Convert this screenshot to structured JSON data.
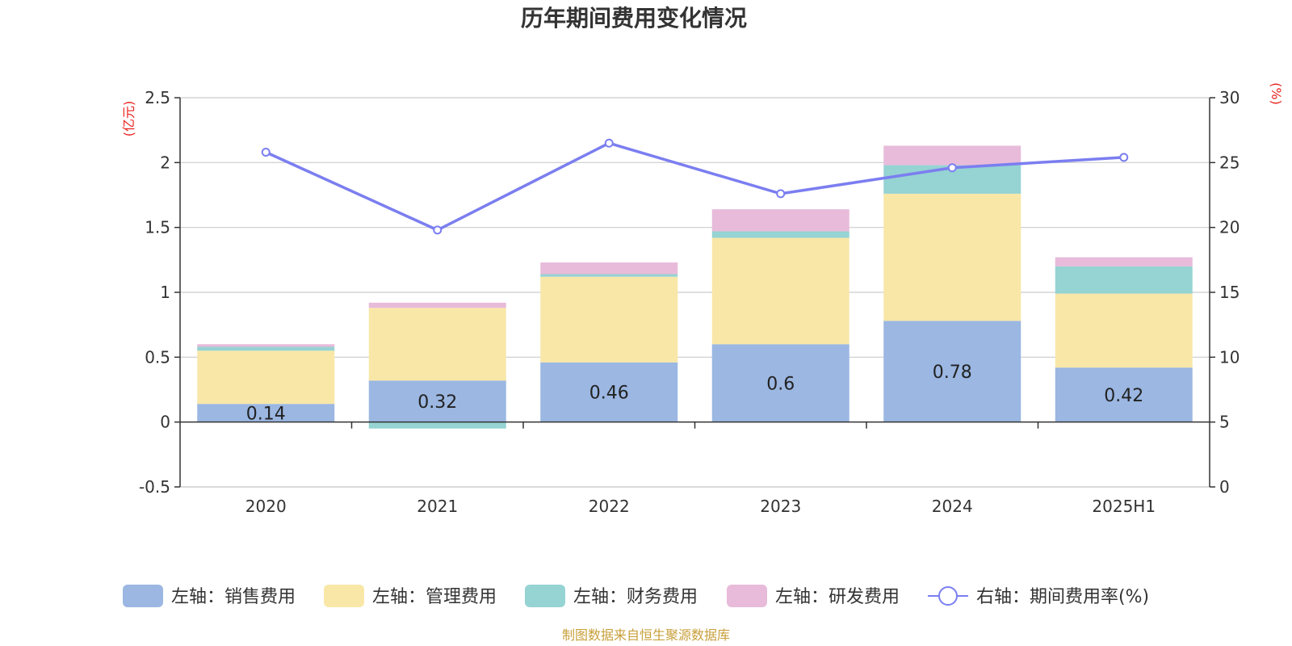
{
  "chart_data": {
    "type": "bar",
    "title": "历年期间费用变化情况",
    "categories": [
      "2020",
      "2021",
      "2022",
      "2023",
      "2024",
      "2025H1"
    ],
    "left_axis": {
      "unit": "(亿元)",
      "ylim": [
        -0.5,
        2.5
      ],
      "ticks": [
        -0.5,
        0,
        0.5,
        1,
        1.5,
        2,
        2.5
      ]
    },
    "right_axis": {
      "unit": "(%)",
      "ylim": [
        0,
        30
      ],
      "ticks": [
        0,
        5,
        10,
        15,
        20,
        25,
        30
      ]
    },
    "stacked": true,
    "series": [
      {
        "name": "左轴：销售费用",
        "color": "#9bb7e2",
        "values": [
          0.14,
          0.32,
          0.46,
          0.6,
          0.78,
          0.42
        ],
        "labels": [
          "0.14",
          "0.32",
          "0.46",
          "0.6",
          "0.78",
          "0.42"
        ]
      },
      {
        "name": "左轴：管理费用",
        "color": "#f9e7a8",
        "values": [
          0.41,
          0.56,
          0.66,
          0.82,
          0.98,
          0.57
        ]
      },
      {
        "name": "左轴：财务费用",
        "color": "#96d3d3",
        "values": [
          0.03,
          -0.05,
          0.02,
          0.05,
          0.22,
          0.21
        ]
      },
      {
        "name": "左轴：研发费用",
        "color": "#e8bbda",
        "values": [
          0.02,
          0.04,
          0.09,
          0.17,
          0.15,
          0.07
        ]
      }
    ],
    "line": {
      "name": "右轴：期间费用率(%)",
      "color": "#7b7ef0",
      "axis": "right",
      "values": [
        25.8,
        19.8,
        26.5,
        22.6,
        24.6,
        25.4
      ]
    },
    "grid": true,
    "legend_position": "bottom"
  },
  "source_text": "制图数据来自恒生聚源数据库"
}
